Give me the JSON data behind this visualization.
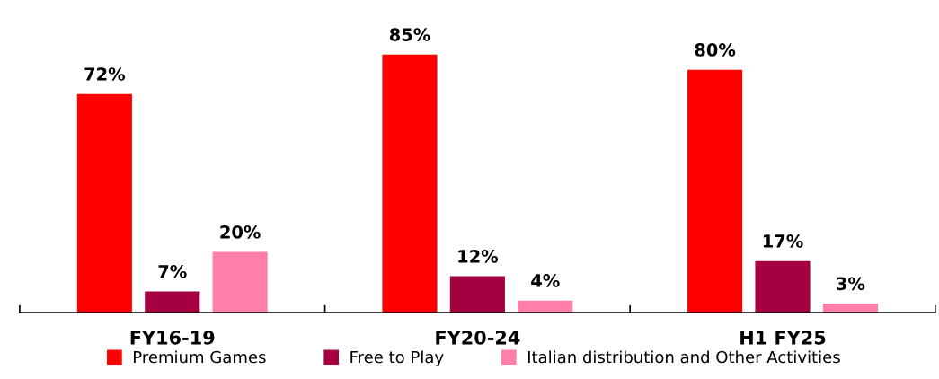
{
  "chart_data": {
    "type": "bar",
    "categories": [
      "FY16-19",
      "FY20-24",
      "H1 FY25"
    ],
    "series": [
      {
        "name": "Premium Games",
        "color": "#ff0000",
        "values": [
          72,
          85,
          80
        ],
        "value_labels": [
          "72%",
          "85%",
          "80%"
        ]
      },
      {
        "name": "Free to Play",
        "color": "#a50040",
        "values": [
          7,
          12,
          17
        ],
        "value_labels": [
          "7%",
          "12%",
          "17%"
        ]
      },
      {
        "name": "Italian distribution and Other Activities",
        "color": "#ff7faa",
        "values": [
          20,
          4,
          3
        ],
        "value_labels": [
          "20%",
          "4%",
          "3%"
        ]
      }
    ],
    "tick_labels": "x",
    "grid": false,
    "legend": "bottom"
  }
}
